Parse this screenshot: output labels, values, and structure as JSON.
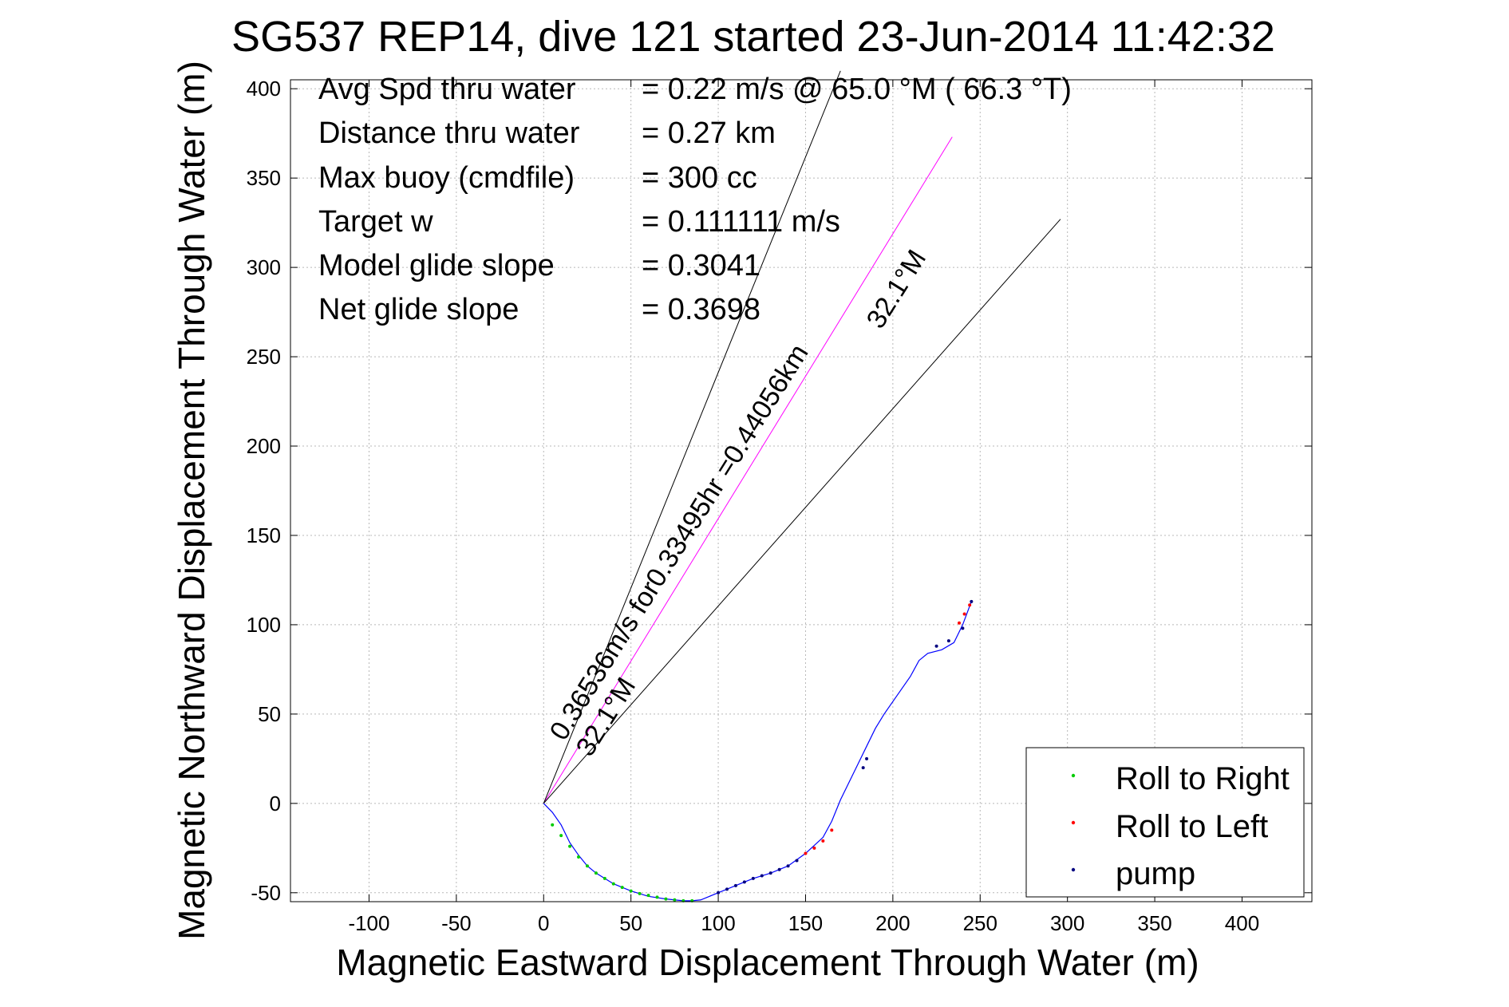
{
  "chart_data": {
    "type": "line",
    "title": "SG537 REP14, dive 121 started 23-Jun-2014 11:42:32",
    "xlabel": "Magnetic Eastward Displacement Through Water (m)",
    "ylabel": "Magnetic Northward Displacement Through Water (m)",
    "xlim": [
      -145,
      440
    ],
    "ylim": [
      -55,
      405
    ],
    "xticks": [
      -100,
      -50,
      0,
      50,
      100,
      150,
      200,
      250,
      300,
      350,
      400
    ],
    "yticks": [
      -50,
      0,
      50,
      100,
      150,
      200,
      250,
      300,
      350,
      400
    ],
    "xtick_labels": [
      "-100",
      "-50",
      "0",
      "50",
      "100",
      "150",
      "200",
      "250",
      "300",
      "350",
      "400"
    ],
    "ytick_labels": [
      "-50",
      "0",
      "50",
      "100",
      "150",
      "200",
      "250",
      "300",
      "350",
      "400"
    ],
    "grid": true,
    "legend_position": "bottom-right",
    "colors": {
      "track": "#0000ff",
      "roll_right": "#00cc00",
      "roll_left": "#ff0000",
      "pump": "#000080",
      "heading_line": "#ff00ff",
      "ref_line": "#000000"
    },
    "info": [
      {
        "label": "Avg Spd thru water",
        "value": "=  0.22 m/s @  65.0 °M ( 66.3 °T)"
      },
      {
        "label": "Distance thru water",
        "value": "=  0.27 km"
      },
      {
        "label": "Max buoy (cmdfile)",
        "value": "= 300 cc"
      },
      {
        "label": "Target w",
        "value": "= 0.111111 m/s"
      },
      {
        "label": "Model glide slope",
        "value": "= 0.3041"
      },
      {
        "label": "Net glide slope",
        "value": "= 0.3698"
      }
    ],
    "annotations": {
      "heading_text": "0.36536m/s for0.33495hr =0.44056km",
      "angle_text_upper": "32.1°M",
      "angle_text_lower": "32.1°M"
    },
    "series": [
      {
        "name": "Roll to Right",
        "marker": "dot",
        "color": "#00cc00",
        "x": [
          5,
          10,
          15,
          20,
          25,
          30,
          35,
          40,
          45,
          50,
          55,
          60,
          65,
          70,
          75,
          80,
          85
        ],
        "y": [
          -12,
          -18,
          -24,
          -30,
          -35,
          -39,
          -42,
          -45,
          -47,
          -49,
          -50.5,
          -51.5,
          -52.5,
          -53.5,
          -54,
          -54.5,
          -54.5
        ]
      },
      {
        "name": "Roll to Left",
        "marker": "dot",
        "color": "#ff0000",
        "x": [
          150,
          155,
          160,
          165,
          238,
          241,
          244
        ],
        "y": [
          -28,
          -25,
          -21,
          -15,
          101,
          106,
          111
        ]
      },
      {
        "name": "pump",
        "marker": "dot",
        "color": "#000080",
        "x": [
          100,
          105,
          110,
          115,
          120,
          125,
          130,
          135,
          140,
          145,
          183,
          185,
          225,
          232,
          240,
          245
        ],
        "y": [
          -50,
          -48,
          -46,
          -44,
          -42,
          -40.5,
          -39,
          -37,
          -35,
          -32,
          20,
          25,
          88,
          91,
          98,
          113
        ]
      }
    ],
    "track": {
      "name": "track",
      "x": [
        0,
        5,
        10,
        15,
        20,
        25,
        30,
        40,
        50,
        60,
        70,
        80,
        85,
        90,
        95,
        100,
        110,
        120,
        130,
        140,
        150,
        160,
        165,
        170,
        175,
        180,
        185,
        190,
        195,
        200,
        210,
        215,
        220,
        228,
        235,
        240,
        245
      ],
      "y": [
        0,
        -5,
        -12,
        -22,
        -29,
        -35,
        -39,
        -45,
        -49,
        -52,
        -53.5,
        -54.5,
        -54.5,
        -54,
        -52,
        -50,
        -46,
        -42,
        -39,
        -35,
        -28,
        -19,
        -10,
        2,
        12,
        22,
        32,
        42,
        50,
        57,
        71,
        80,
        84,
        86,
        90,
        100,
        113
      ]
    },
    "lines": [
      {
        "name": "heading",
        "color": "#ff00ff",
        "x": [
          0,
          234
        ],
        "y": [
          0,
          373
        ]
      },
      {
        "name": "ref-upper",
        "color": "#000000",
        "x": [
          0,
          170
        ],
        "y": [
          0,
          410
        ]
      },
      {
        "name": "ref-lower",
        "color": "#000000",
        "x": [
          0,
          296
        ],
        "y": [
          0,
          327
        ]
      }
    ]
  }
}
